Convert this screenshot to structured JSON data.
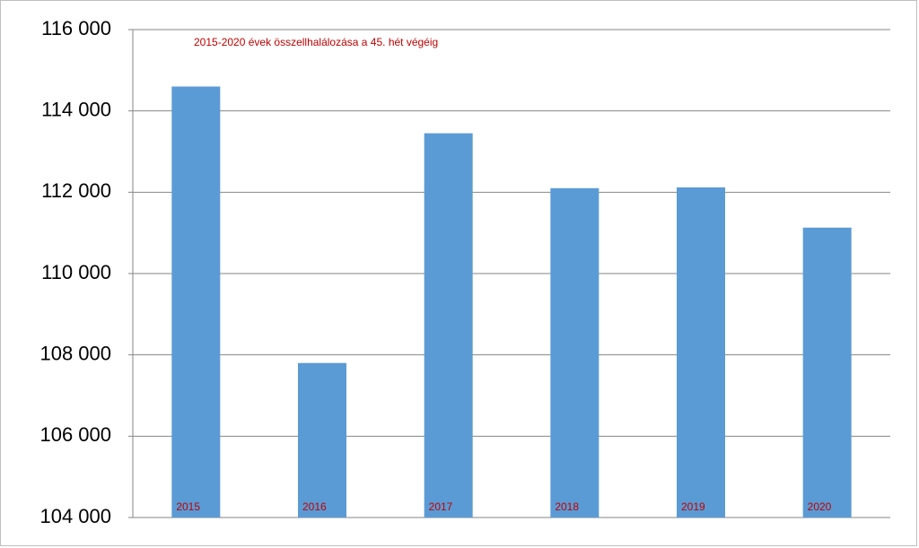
{
  "chart_data": {
    "type": "bar",
    "title": "2015-2020 évek összellhalálozása a 45. hét végéig",
    "categories": [
      "2015",
      "2016",
      "2017",
      "2018",
      "2019",
      "2020"
    ],
    "values": [
      114600,
      107800,
      113450,
      112100,
      112120,
      111130
    ],
    "color": "#5b9bd5",
    "ylim": [
      104000,
      116000
    ],
    "yticks": [
      {
        "value": 104000,
        "label": "104 000"
      },
      {
        "value": 106000,
        "label": "106 000"
      },
      {
        "value": 108000,
        "label": "108 000"
      },
      {
        "value": 110000,
        "label": "110 000"
      },
      {
        "value": 112000,
        "label": "112 000"
      },
      {
        "value": 114000,
        "label": "114 000"
      },
      {
        "value": 116000,
        "label": "116 000"
      }
    ],
    "grid": true
  }
}
